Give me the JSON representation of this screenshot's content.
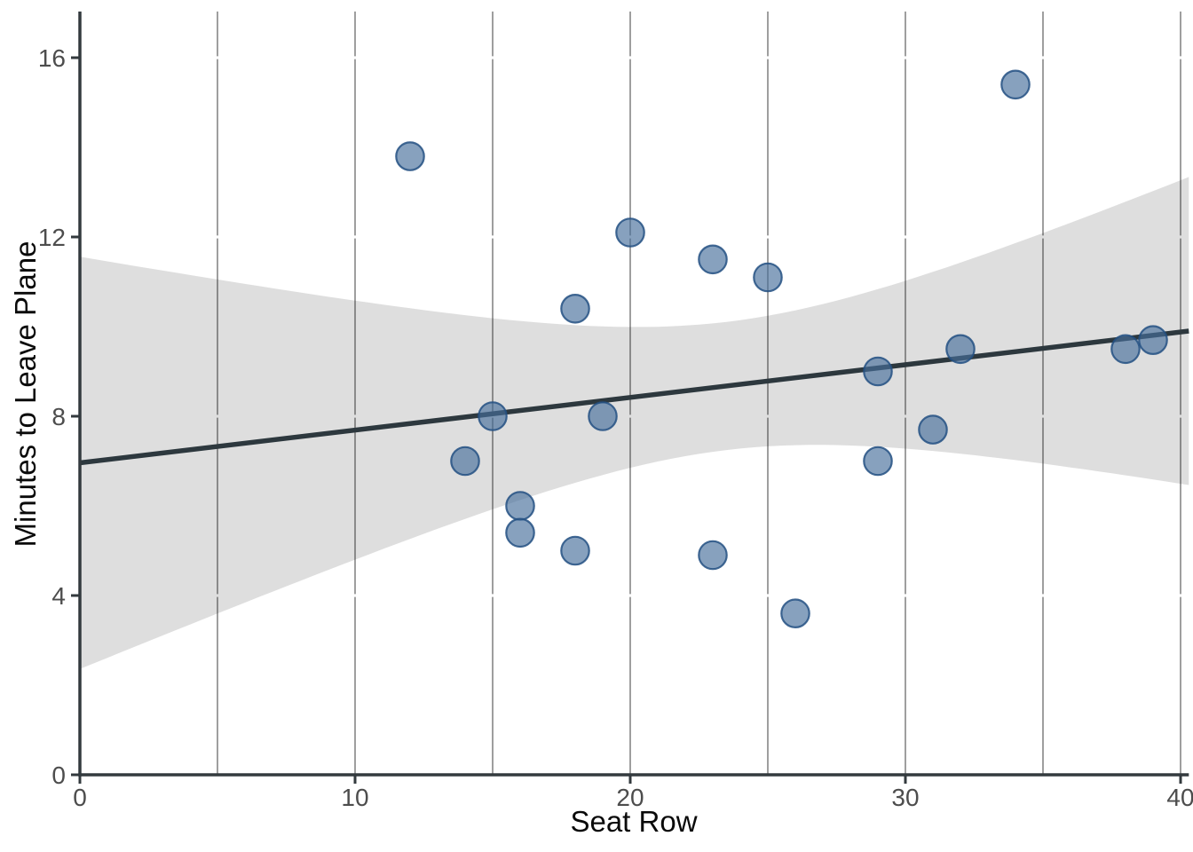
{
  "chart_data": {
    "type": "scatter",
    "title": "",
    "xlabel": "Seat Row",
    "ylabel": "Minutes to Leave Plane",
    "xlim": [
      0,
      40.3
    ],
    "ylim": [
      0,
      17
    ],
    "x_ticks": [
      0,
      10,
      20,
      30,
      40
    ],
    "y_ticks": [
      0,
      4,
      8,
      12,
      16
    ],
    "x_gridlines": [
      5,
      10,
      15,
      20,
      25,
      30,
      35,
      40
    ],
    "grid": "vertical-major-only, horizontal gridlines white",
    "legend": "none",
    "points": [
      [
        12,
        13.8
      ],
      [
        14,
        7.0
      ],
      [
        15,
        8.0
      ],
      [
        16,
        6.0
      ],
      [
        16,
        5.4
      ],
      [
        18,
        10.4
      ],
      [
        18,
        5.0
      ],
      [
        19,
        8.0
      ],
      [
        20,
        12.1
      ],
      [
        23,
        11.5
      ],
      [
        23,
        4.9
      ],
      [
        25,
        11.1
      ],
      [
        26,
        3.6
      ],
      [
        29,
        9.0
      ],
      [
        29,
        7.0
      ],
      [
        31,
        7.7
      ],
      [
        32,
        9.5
      ],
      [
        34,
        15.4
      ],
      [
        38,
        9.5
      ],
      [
        39,
        9.7
      ]
    ],
    "trend_line": {
      "type": "linear",
      "intercept": 6.96,
      "slope": 0.073,
      "x_start": 0,
      "x_end": 40.3
    },
    "confidence_band": {
      "x": [
        0,
        5,
        10,
        15,
        20,
        25,
        30,
        35,
        40
      ],
      "lower": [
        2.36,
        3.59,
        4.8,
        5.92,
        6.85,
        7.32,
        7.28,
        6.94,
        6.49
      ],
      "upper": [
        11.56,
        11.05,
        10.58,
        10.18,
        9.99,
        10.24,
        11.02,
        12.08,
        13.27
      ],
      "half_width_model": {
        "a": 2.045,
        "b": 0.0346,
        "x_center": 23.5
      }
    }
  },
  "style": {
    "background_color": "#ffffff",
    "point_fill": "rgba(70,110,155,0.65)",
    "point_stroke": "rgba(35,80,130,0.85)",
    "trend_line_color": "#2d383e",
    "band_fill": "rgba(0,0,0,0.13)",
    "gridline_color": "#5f5f5f",
    "axis_color": "#333a3e",
    "tick_label_color": "#4d4d4d",
    "title_color": "#0a0a0a"
  }
}
